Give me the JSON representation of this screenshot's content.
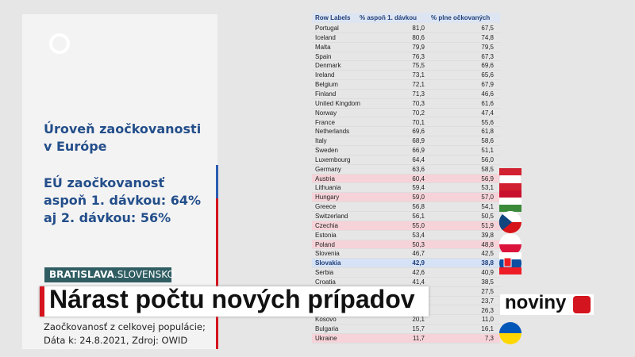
{
  "panel": {
    "line1": "Úroveň zaočkovanosti",
    "line2": "v Európe",
    "stat1": "EÚ zaočkovanosť",
    "stat2": "aspoň 1. dávkou: 64%",
    "stat3": "aj 2. dávkou: 56%",
    "note1": "Zaočkovanosť z celkovej populácie;",
    "note2": "Dáta k: 24.8.2021, Zdroj: OWID"
  },
  "table": {
    "headers": [
      "Row Labels",
      "% aspoň 1. dávkou",
      "% plne očkovaných"
    ],
    "rows": [
      {
        "country": "Portugal",
        "first": "81,0",
        "full": "67,5"
      },
      {
        "country": "Iceland",
        "first": "80,6",
        "full": "74,8"
      },
      {
        "country": "Malta",
        "first": "79,9",
        "full": "79,5"
      },
      {
        "country": "Spain",
        "first": "76,3",
        "full": "67,3"
      },
      {
        "country": "Denmark",
        "first": "75,5",
        "full": "69,6"
      },
      {
        "country": "Ireland",
        "first": "73,1",
        "full": "65,6"
      },
      {
        "country": "Belgium",
        "first": "72,1",
        "full": "67,9"
      },
      {
        "country": "Finland",
        "first": "71,3",
        "full": "46,6"
      },
      {
        "country": "United Kingdom",
        "first": "70,3",
        "full": "61,6"
      },
      {
        "country": "Norway",
        "first": "70,2",
        "full": "47,4"
      },
      {
        "country": "France",
        "first": "70,1",
        "full": "55,6"
      },
      {
        "country": "Netherlands",
        "first": "69,6",
        "full": "61,8"
      },
      {
        "country": "Italy",
        "first": "68,9",
        "full": "58,6"
      },
      {
        "country": "Sweden",
        "first": "66,9",
        "full": "51,1"
      },
      {
        "country": "Luxembourg",
        "first": "64,4",
        "full": "56,0"
      },
      {
        "country": "Germany",
        "first": "63,6",
        "full": "58,5"
      },
      {
        "country": "Austria",
        "first": "60,4",
        "full": "56,9"
      },
      {
        "country": "Lithuania",
        "first": "59,4",
        "full": "53,1"
      },
      {
        "country": "Hungary",
        "first": "59,0",
        "full": "57,0"
      },
      {
        "country": "Greece",
        "first": "56,8",
        "full": "54,1"
      },
      {
        "country": "Switzerland",
        "first": "56,1",
        "full": "50,5"
      },
      {
        "country": "Czechia",
        "first": "55,0",
        "full": "51,9"
      },
      {
        "country": "Estonia",
        "first": "53,4",
        "full": "39,8"
      },
      {
        "country": "Poland",
        "first": "50,3",
        "full": "48,8"
      },
      {
        "country": "Slovenia",
        "first": "46,7",
        "full": "42,5"
      },
      {
        "country": "Slovakia",
        "first": "42,9",
        "full": "38,8"
      },
      {
        "country": "Serbia",
        "first": "42,6",
        "full": "40,9"
      },
      {
        "country": "Croatia",
        "first": "41,4",
        "full": "38,5"
      },
      {
        "full": "27,5"
      },
      {
        "full": "23,7"
      },
      {
        "full": "26,3"
      },
      {
        "country": "Kosovo",
        "first": "20,1",
        "full": "11,0"
      },
      {
        "country": "Bulgaria",
        "first": "15,7",
        "full": "16,1"
      },
      {
        "country": "Ukraine",
        "first": "11,7",
        "full": "7,3"
      }
    ]
  },
  "lower_third": {
    "location": "BRATISLAVA",
    "location2": ".SLOVENSKO",
    "headline": "Nárast počtu nových prípadov",
    "brand": "noviny"
  }
}
